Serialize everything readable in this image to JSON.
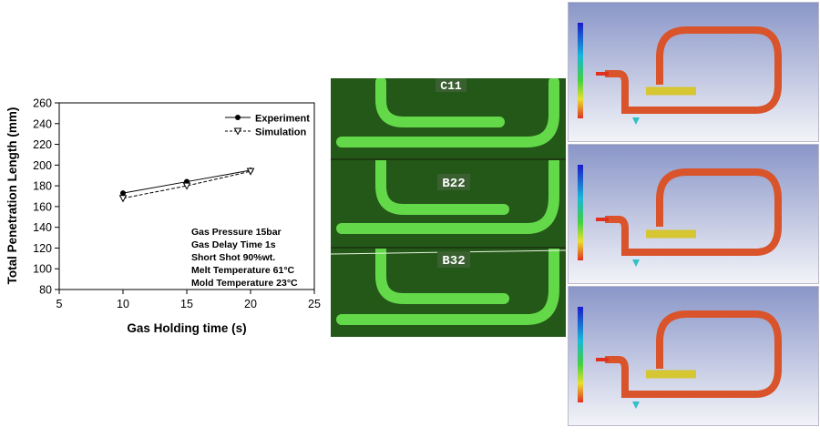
{
  "chart_data": {
    "type": "line",
    "xlabel": "Gas Holding time (s)",
    "ylabel": "Total Penetration Length (mm)",
    "xlim": [
      5,
      25
    ],
    "ylim": [
      80,
      260
    ],
    "x_ticks": [
      5,
      10,
      15,
      20,
      25
    ],
    "y_ticks": [
      80,
      100,
      120,
      140,
      160,
      180,
      200,
      220,
      240,
      260
    ],
    "x": [
      10,
      15,
      20
    ],
    "series": [
      {
        "name": "Experiment",
        "values": [
          173,
          184,
          195
        ],
        "marker": "filled-circle",
        "line": "solid"
      },
      {
        "name": "Simulation",
        "values": [
          168,
          180,
          194
        ],
        "marker": "open-triangle-down",
        "line": "dashed"
      }
    ],
    "legend_position": "top-right",
    "grid": false,
    "annotations": [
      "Gas Pressure 15bar",
      "Gas Delay Time 1s",
      "Short Shot 90%wt.",
      "Melt Temperature 61°C",
      "Mold Temperature  23°C"
    ]
  },
  "photo_labels": [
    "C11",
    "B22",
    "B32"
  ],
  "colors": {
    "photo_bg": "#1f4a14",
    "photo_part": "#63d94a",
    "sim_bg_top": "#8a96c8",
    "sim_bg_bottom": "#f2f3f8",
    "sim_part": "#d9532b",
    "sim_fill_end": "#d6c632",
    "sim_title": "#cc2222"
  }
}
